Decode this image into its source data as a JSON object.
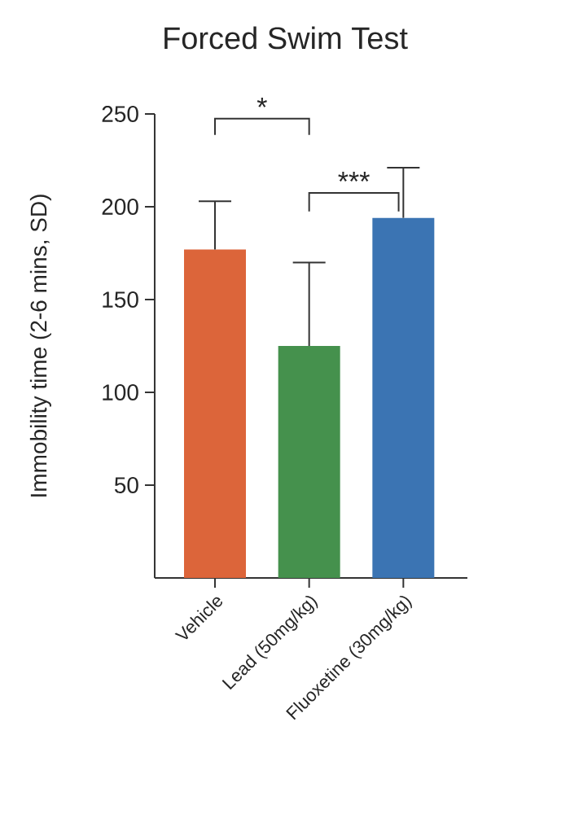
{
  "chart_data": {
    "type": "bar",
    "title": "Forced Swim Test",
    "ylabel": "Immobility time (2-6 mins, SD)",
    "categories": [
      "Vehicle",
      "Lead (50mg/kg)",
      "Fluoxetine (30mg/kg)"
    ],
    "values": [
      177,
      125,
      194
    ],
    "colors": [
      "#dc653a",
      "#45914d",
      "#3b74b3"
    ],
    "errors": [
      [
        177,
        203
      ],
      [
        125,
        170
      ],
      [
        194,
        221
      ]
    ],
    "ylim": [
      0,
      250
    ],
    "yticks": [
      50,
      100,
      150,
      200,
      250
    ],
    "annotations": [
      "*",
      "***"
    ]
  }
}
